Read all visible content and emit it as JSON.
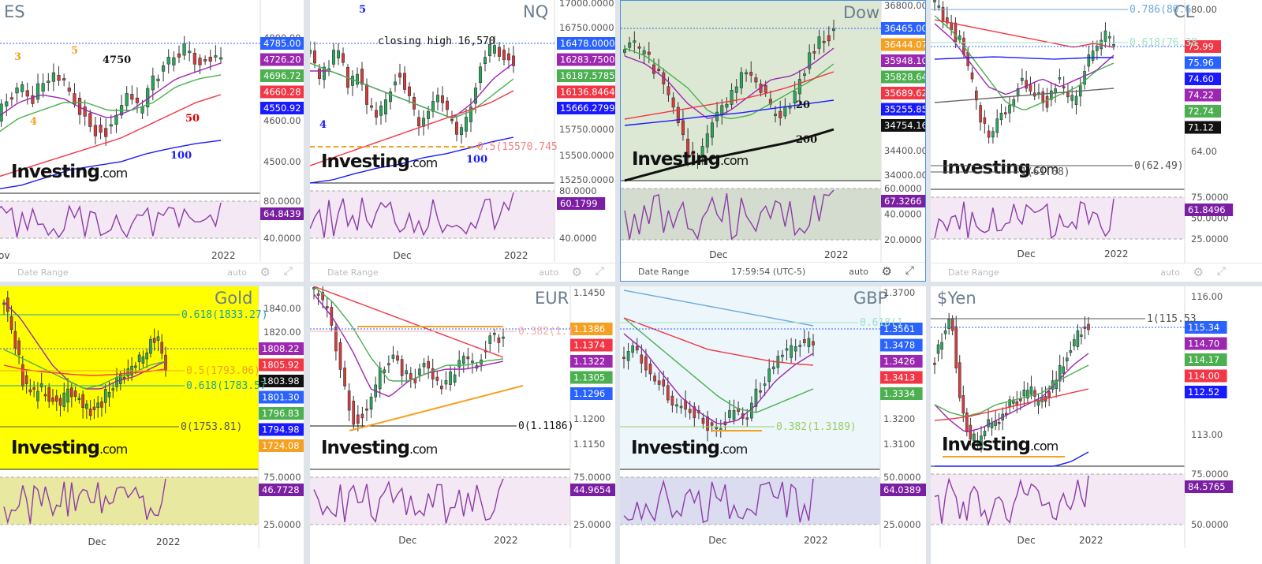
{
  "colors": {
    "candle_up": "#27a85a",
    "candle_down": "#d93b3b",
    "rsi_line": "#8b3da6",
    "fib_orange": "#f5a021",
    "gold_bg": "#ffff00",
    "dow_bg": "#dce8d4",
    "gbp_bg": "#ecf6fb"
  },
  "toolbar": {
    "date_range": "Date Range",
    "auto": "auto",
    "time": "17:59:54 (UTC-5)"
  },
  "logo": {
    "brand": "Investing",
    ".com": ".com"
  },
  "panels": [
    {
      "id": "es",
      "title": "ES",
      "x_labels": [
        "ov",
        "2022"
      ],
      "y_ticks": [
        "4800.00",
        "4700.00",
        "4600.00",
        "4500.00"
      ],
      "rsi_ticks": [
        "80.0000",
        "40.0000"
      ],
      "tags": [
        {
          "text": "4785.00",
          "bg": "#2962ff",
          "fg": "#fff"
        },
        {
          "text": "4726.20",
          "bg": "#9c27b0",
          "fg": "#fff"
        },
        {
          "text": "4696.72",
          "bg": "#4caf50",
          "fg": "#fff"
        },
        {
          "text": "4660.28",
          "bg": "#f23645",
          "fg": "#fff"
        },
        {
          "text": "4550.92",
          "bg": "#1a1aff",
          "fg": "#fff"
        },
        {
          "text": "64.8439",
          "bg": "#7b1fa2",
          "fg": "#fff"
        }
      ],
      "annotations": [
        "3",
        "5",
        "4",
        "4750",
        "50",
        "100"
      ],
      "price": 4785,
      "rsi": 64.84
    },
    {
      "id": "nq",
      "title": "NQ",
      "x_labels": [
        "Dec",
        "2022"
      ],
      "y_ticks": [
        "17000.0000",
        "16750.0000",
        "15750.0000",
        "15500.0000",
        "15250.0000"
      ],
      "rsi_ticks": [
        "80.0000",
        "40.0000"
      ],
      "tags": [
        {
          "text": "16478.0000",
          "bg": "#2962ff",
          "fg": "#fff"
        },
        {
          "text": "16283.7500",
          "bg": "#9c27b0",
          "fg": "#fff"
        },
        {
          "text": "16187.5785",
          "bg": "#4caf50",
          "fg": "#fff"
        },
        {
          "text": "16136.8464",
          "bg": "#f23645",
          "fg": "#fff"
        },
        {
          "text": "15666.2799",
          "bg": "#1a1aff",
          "fg": "#fff"
        },
        {
          "text": "60.1799",
          "bg": "#7b1fa2",
          "fg": "#fff"
        }
      ],
      "annotations": [
        "5",
        "4",
        "closing high 16,570",
        "100"
      ],
      "fib_label": "0.5(15570.745",
      "price": 16478,
      "rsi": 60.18
    },
    {
      "id": "dow",
      "title": "Dow",
      "x_labels": [
        "Dec",
        "2022"
      ],
      "y_ticks": [
        "36800.00",
        "34400.00",
        "34000.00"
      ],
      "rsi_ticks": [
        "60.0000",
        "40.0000",
        "20.0000"
      ],
      "tags": [
        {
          "text": "36465.00",
          "bg": "#2962ff",
          "fg": "#fff"
        },
        {
          "text": "36444.07",
          "bg": "#f5a021",
          "fg": "#fff"
        },
        {
          "text": "35948.10",
          "bg": "#9c27b0",
          "fg": "#fff"
        },
        {
          "text": "35828.64",
          "bg": "#4caf50",
          "fg": "#fff"
        },
        {
          "text": "35689.62",
          "bg": "#f23645",
          "fg": "#fff"
        },
        {
          "text": "35255.85",
          "bg": "#1a1aff",
          "fg": "#fff"
        },
        {
          "text": "34754.16",
          "bg": "#111",
          "fg": "#fff"
        },
        {
          "text": "67.3266",
          "bg": "#7b1fa2",
          "fg": "#fff"
        }
      ],
      "annotations": [
        "20",
        "200"
      ],
      "price": 36465,
      "rsi": 67.33
    },
    {
      "id": "cl",
      "title": "CL",
      "x_labels": [
        "Dec",
        "2022"
      ],
      "y_ticks": [
        "80.00",
        "64.00"
      ],
      "rsi_ticks": [
        "75.0000",
        "50.0000",
        "25.0000"
      ],
      "tags": [
        {
          "text": "75.99",
          "bg": "#f23645",
          "fg": "#fff"
        },
        {
          "text": "75.96",
          "bg": "#2962ff",
          "fg": "#fff"
        },
        {
          "text": "74.60",
          "bg": "#1a1aff",
          "fg": "#fff"
        },
        {
          "text": "74.22",
          "bg": "#9c27b0",
          "fg": "#fff"
        },
        {
          "text": "72.74",
          "bg": "#4caf50",
          "fg": "#fff"
        },
        {
          "text": "71.12",
          "bg": "#111",
          "fg": "#fff"
        },
        {
          "text": "61.8496",
          "bg": "#7b1fa2",
          "fg": "#fff"
        }
      ],
      "fib_labels": [
        "0.786(80.6",
        "0.618(76.38",
        "0(62.49)",
        "1(61.68)"
      ],
      "price": 75.96,
      "rsi": 61.85
    },
    {
      "id": "gold",
      "title": "Gold",
      "x_labels": [
        "Dec",
        "2022"
      ],
      "y_ticks": [
        "1840.00",
        "1820.00",
        "1740.00"
      ],
      "rsi_ticks": [
        "75.0000",
        "25.0000"
      ],
      "tags": [
        {
          "text": "1808.22",
          "bg": "#9c27b0",
          "fg": "#fff"
        },
        {
          "text": "1805.92",
          "bg": "#f23645",
          "fg": "#fff"
        },
        {
          "text": "1803.98",
          "bg": "#111",
          "fg": "#fff"
        },
        {
          "text": "1801.30",
          "bg": "#2962ff",
          "fg": "#fff"
        },
        {
          "text": "1796.83",
          "bg": "#4caf50",
          "fg": "#fff"
        },
        {
          "text": "1794.98",
          "bg": "#1a1aff",
          "fg": "#fff"
        },
        {
          "text": "1724.08",
          "bg": "#f5a021",
          "fg": "#fff"
        },
        {
          "text": "46.7728",
          "bg": "#7b1fa2",
          "fg": "#fff"
        }
      ],
      "fib_labels": [
        "0.618(1833.27)",
        "0.5(1793.06)",
        "0.618(1783.57",
        "0(1753.81)"
      ],
      "price": 1803.98,
      "rsi": 46.77
    },
    {
      "id": "eur",
      "title": "EUR",
      "x_labels": [
        "Dec",
        "2022"
      ],
      "y_ticks": [
        "1.1450",
        "1.1200",
        "1.1150"
      ],
      "rsi_ticks": [
        "75.0000",
        "25.0000"
      ],
      "tags": [
        {
          "text": "1.1386",
          "bg": "#f5a021",
          "fg": "#fff"
        },
        {
          "text": "1.1374",
          "bg": "#f23645",
          "fg": "#fff"
        },
        {
          "text": "1.1322",
          "bg": "#9c27b0",
          "fg": "#fff"
        },
        {
          "text": "1.1305",
          "bg": "#4caf50",
          "fg": "#fff"
        },
        {
          "text": "1.1296",
          "bg": "#2962ff",
          "fg": "#fff"
        },
        {
          "text": "44.9654",
          "bg": "#7b1fa2",
          "fg": "#fff"
        }
      ],
      "fib_labels": [
        "0.382(1.1",
        "0(1.1186)"
      ],
      "price": 1.1305,
      "rsi": 44.97
    },
    {
      "id": "gbp",
      "title": "GBP",
      "x_labels": [
        "Dec",
        "2022"
      ],
      "y_ticks": [
        "1.3700",
        "1.3200",
        "1.3100"
      ],
      "rsi_ticks": [
        "50.0000",
        "25.0000"
      ],
      "tags": [
        {
          "text": "1.3561",
          "bg": "#2962ff",
          "fg": "#fff"
        },
        {
          "text": "1.3478",
          "bg": "#2962ff",
          "fg": "#fff"
        },
        {
          "text": "1.3426",
          "bg": "#9c27b0",
          "fg": "#fff"
        },
        {
          "text": "1.3413",
          "bg": "#f23645",
          "fg": "#fff"
        },
        {
          "text": "1.3334",
          "bg": "#4caf50",
          "fg": "#fff"
        },
        {
          "text": "64.0389",
          "bg": "#7b1fa2",
          "fg": "#fff"
        }
      ],
      "fib_labels": [
        "0.618(1.",
        "0.382(1.3189)"
      ],
      "price": 1.3478,
      "rsi": 64.04
    },
    {
      "id": "yen",
      "title": "$Yen",
      "x_labels": [
        "Dec",
        "2022"
      ],
      "y_ticks": [
        "116.00",
        "115.00",
        "113.00"
      ],
      "rsi_ticks": [
        "75.0000",
        "50.0000"
      ],
      "tags": [
        {
          "text": "115.34",
          "bg": "#2962ff",
          "fg": "#fff"
        },
        {
          "text": "114.70",
          "bg": "#9c27b0",
          "fg": "#fff"
        },
        {
          "text": "114.17",
          "bg": "#4caf50",
          "fg": "#fff"
        },
        {
          "text": "114.00",
          "bg": "#f23645",
          "fg": "#fff"
        },
        {
          "text": "112.52",
          "bg": "#1a1aff",
          "fg": "#fff"
        },
        {
          "text": "84.5765",
          "bg": "#7b1fa2",
          "fg": "#fff"
        }
      ],
      "fib_labels": [
        "1(115.53"
      ],
      "price": 115.34,
      "rsi": 84.58
    }
  ],
  "chart_data": [
    {
      "type": "candlestick",
      "title": "ES",
      "ylim": [
        4450,
        4850
      ],
      "last": 4785,
      "levels": [
        4750
      ],
      "rsi": {
        "ylim": [
          20,
          90
        ],
        "last": 64.84
      }
    },
    {
      "type": "candlestick",
      "title": "NQ",
      "ylim": [
        15200,
        17050
      ],
      "last": 16478,
      "levels": [
        16570,
        15570.745
      ],
      "rsi": {
        "ylim": [
          30,
          90
        ],
        "last": 60.18
      }
    },
    {
      "type": "candlestick",
      "title": "Dow",
      "ylim": [
        33900,
        36850
      ],
      "last": 36465,
      "rsi": {
        "ylim": [
          15,
          70
        ],
        "last": 67.33
      }
    },
    {
      "type": "candlestick",
      "title": "CL",
      "ylim": [
        62,
        81
      ],
      "last": 75.96,
      "levels": [
        80.6,
        76.38,
        62.49,
        61.68
      ],
      "rsi": {
        "ylim": [
          20,
          80
        ],
        "last": 61.85
      }
    },
    {
      "type": "candlestick",
      "title": "Gold",
      "ylim": [
        1720,
        1850
      ],
      "last": 1803.98,
      "levels": [
        1833.27,
        1793.06,
        1783.57,
        1753.81
      ],
      "rsi": {
        "ylim": [
          20,
          80
        ],
        "last": 46.77
      }
    },
    {
      "type": "candlestick",
      "title": "EUR",
      "ylim": [
        1.113,
        1.146
      ],
      "last": 1.1305,
      "levels": [
        1.1186
      ],
      "rsi": {
        "ylim": [
          20,
          80
        ],
        "last": 44.97
      }
    },
    {
      "type": "candlestick",
      "title": "GBP",
      "ylim": [
        1.305,
        1.372
      ],
      "last": 1.3478,
      "levels": [
        1.3189
      ],
      "rsi": {
        "ylim": [
          20,
          70
        ],
        "last": 64.04
      }
    },
    {
      "type": "candlestick",
      "title": "$Yen",
      "ylim": [
        112.5,
        116.3
      ],
      "last": 115.34,
      "levels": [
        115.53
      ],
      "rsi": {
        "ylim": [
          35,
          90
        ],
        "last": 84.58
      }
    }
  ]
}
